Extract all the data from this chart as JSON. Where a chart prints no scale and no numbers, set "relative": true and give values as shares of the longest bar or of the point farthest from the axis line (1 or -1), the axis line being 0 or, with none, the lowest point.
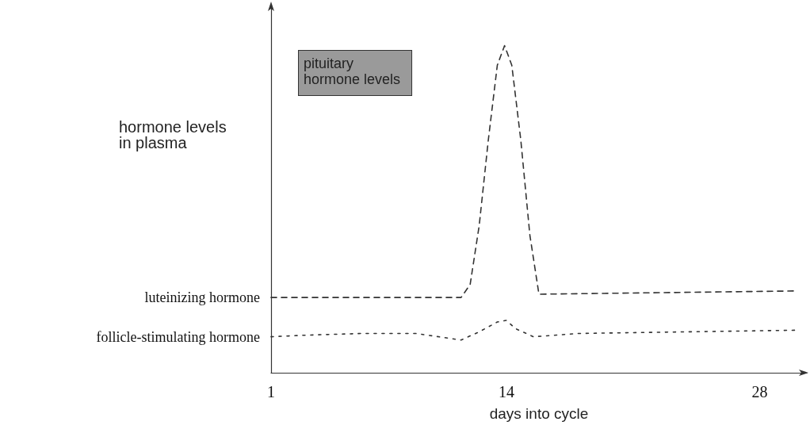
{
  "chart_data": {
    "type": "line",
    "relative": true,
    "xlabel": "days into cycle",
    "ylabel": "hormone levels\nin plasma",
    "annotations": [
      "pituitary\nhormone levels"
    ],
    "xlim": [
      1,
      30.6
    ],
    "xticks": [
      1,
      14,
      28
    ],
    "grid": false,
    "legend": false,
    "marker": "none",
    "series": [
      {
        "name": "luteinizing hormone",
        "color": "#333333",
        "line_style": "dashed",
        "x": [
          1,
          11.5,
          12,
          12.5,
          13,
          13.5,
          13.9,
          14.3,
          14.8,
          15.3,
          15.8,
          30
        ],
        "values": [
          0.23,
          0.23,
          0.27,
          0.45,
          0.71,
          0.94,
          1,
          0.94,
          0.71,
          0.42,
          0.24,
          0.25
        ]
      },
      {
        "name": "follicle-stimulating hormone",
        "color": "#333333",
        "line_style": "dotted",
        "x": [
          1,
          3,
          6,
          9,
          11.5,
          12.5,
          13.5,
          14,
          14.5,
          15.5,
          18,
          30
        ],
        "values": [
          0.11,
          0.115,
          0.12,
          0.12,
          0.1,
          0.125,
          0.155,
          0.16,
          0.135,
          0.11,
          0.12,
          0.13
        ]
      }
    ]
  }
}
